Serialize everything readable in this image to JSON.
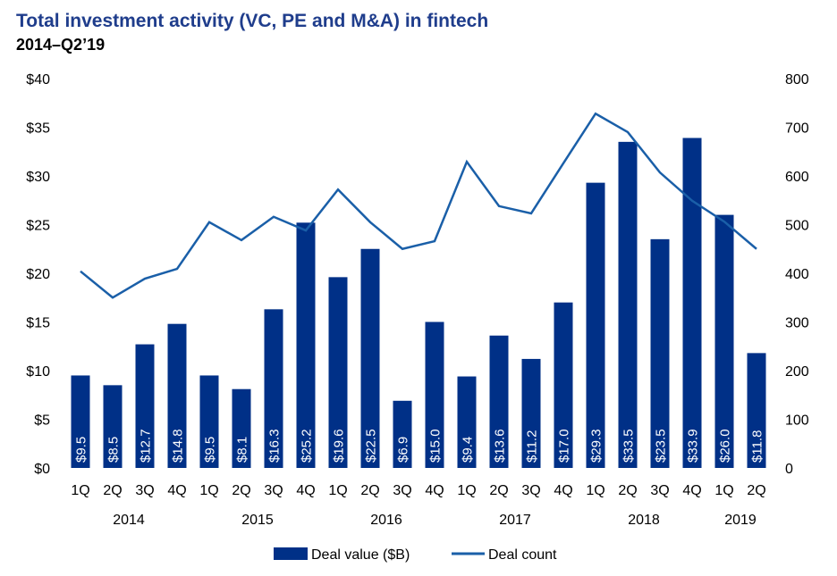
{
  "chart_data": {
    "type": "bar+line",
    "title": "Total investment activity (VC, PE and M&A) in fintech",
    "subtitle": "2014–Q2’19",
    "categories": [
      "1Q",
      "2Q",
      "3Q",
      "4Q",
      "1Q",
      "2Q",
      "3Q",
      "4Q",
      "1Q",
      "2Q",
      "3Q",
      "4Q",
      "1Q",
      "2Q",
      "3Q",
      "4Q",
      "1Q",
      "2Q",
      "3Q",
      "4Q",
      "1Q",
      "2Q"
    ],
    "years": [
      "2014",
      "2015",
      "2016",
      "2017",
      "2018",
      "2019"
    ],
    "series": [
      {
        "name": "Deal value ($B)",
        "type": "bar",
        "axis": "left",
        "color": "#003087",
        "values": [
          9.5,
          8.5,
          12.7,
          14.8,
          9.5,
          8.1,
          16.3,
          25.2,
          19.6,
          22.5,
          6.9,
          15.0,
          9.4,
          13.6,
          11.2,
          17.0,
          29.3,
          33.5,
          23.5,
          33.9,
          26.0,
          11.8
        ],
        "labels": [
          "$9.5",
          "$8.5",
          "$12.7",
          "$14.8",
          "$9.5",
          "$8.1",
          "$16.3",
          "$25.2",
          "$19.6",
          "$22.5",
          "$6.9",
          "$15.0",
          "$9.4",
          "$13.6",
          "$11.2",
          "$17.0",
          "$29.3",
          "$33.5",
          "$23.5",
          "$33.9",
          "$26.0",
          "$11.8"
        ]
      },
      {
        "name": "Deal count",
        "type": "line",
        "axis": "right",
        "color": "#1a5fa8",
        "values": [
          404,
          350,
          389,
          409,
          505,
          468,
          516,
          488,
          572,
          505,
          450,
          466,
          629,
          538,
          523,
          626,
          728,
          690,
          607,
          549,
          506,
          450
        ]
      }
    ],
    "y_left": {
      "ylim": [
        0,
        40
      ],
      "ticks": [
        "$0",
        "$5",
        "$10",
        "$15",
        "$20",
        "$25",
        "$30",
        "$35",
        "$40"
      ]
    },
    "y_right": {
      "ylim": [
        0,
        800
      ],
      "ticks": [
        "0",
        "100",
        "200",
        "300",
        "400",
        "500",
        "600",
        "700",
        "800"
      ]
    },
    "legend": "bottom",
    "grid": false
  }
}
